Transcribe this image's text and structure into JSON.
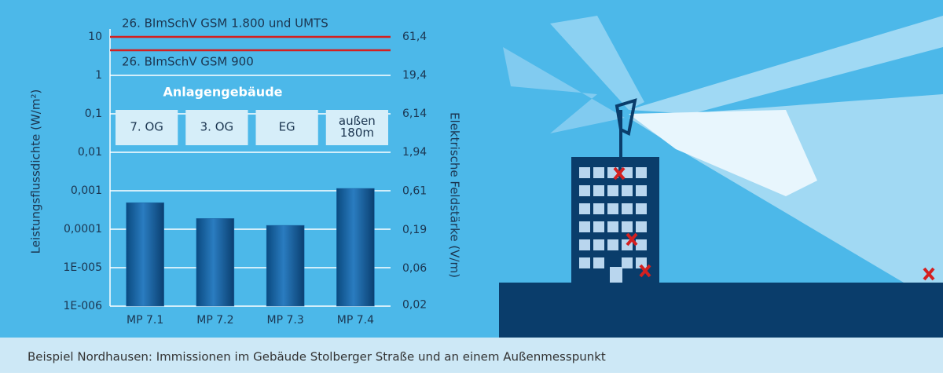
{
  "caption": "Beispiel Nordhausen: Immissionen im Gebäude Stolberger Straße und an einem Außenmesspunkt",
  "chart_data": {
    "type": "bar",
    "log_scale": true,
    "grid": true,
    "y_label": "Leistungsflussdichte (W/m²)",
    "y2_label": "Elektrische Feldstärke (V/m)",
    "categories": [
      "MP 7.1",
      "MP 7.2",
      "MP 7.3",
      "MP 7.4"
    ],
    "values": [
      0.00049,
      0.00019,
      0.000126,
      0.00115
    ],
    "color": "#1a64a3",
    "ylim": [
      1e-06,
      10
    ],
    "yticks": [
      10,
      1,
      {
        "value": 0.1,
        "label": "0,1"
      },
      {
        "value": 0.01,
        "label": "0,01"
      },
      {
        "value": 0.001,
        "label": "0,001"
      },
      {
        "value": 0.0001,
        "label": "0,0001"
      },
      {
        "value": 1e-05,
        "label": "1E-005"
      },
      {
        "value": 1e-06,
        "label": "1E-006"
      }
    ],
    "y2lim": [
      0.0194,
      61.4
    ],
    "y2ticks": [
      {
        "value": 61.4,
        "label": "61,4"
      },
      {
        "value": 19.4,
        "label": "19,4"
      },
      {
        "value": 6.14,
        "label": "6,14"
      },
      {
        "value": 1.94,
        "label": "1,94"
      },
      {
        "value": 0.61,
        "label": "0,61"
      },
      {
        "value": 0.19,
        "label": "0,19"
      },
      {
        "value": 0.06,
        "label": "0,06"
      },
      {
        "value": 0.02,
        "label": "0,02"
      }
    ],
    "limits": [
      {
        "label": "26. BImSchV GSM 1.800 und UMTS",
        "value": 10,
        "color": "#d42020"
      },
      {
        "label": "26. BImSchV GSM 900",
        "value": 4.5,
        "color": "#d42020"
      }
    ],
    "location_title": "Anlagengebäude",
    "location_labels": [
      [
        "7. OG"
      ],
      [
        "3. OG"
      ],
      [
        "EG"
      ],
      [
        "außen",
        "180m"
      ]
    ]
  }
}
